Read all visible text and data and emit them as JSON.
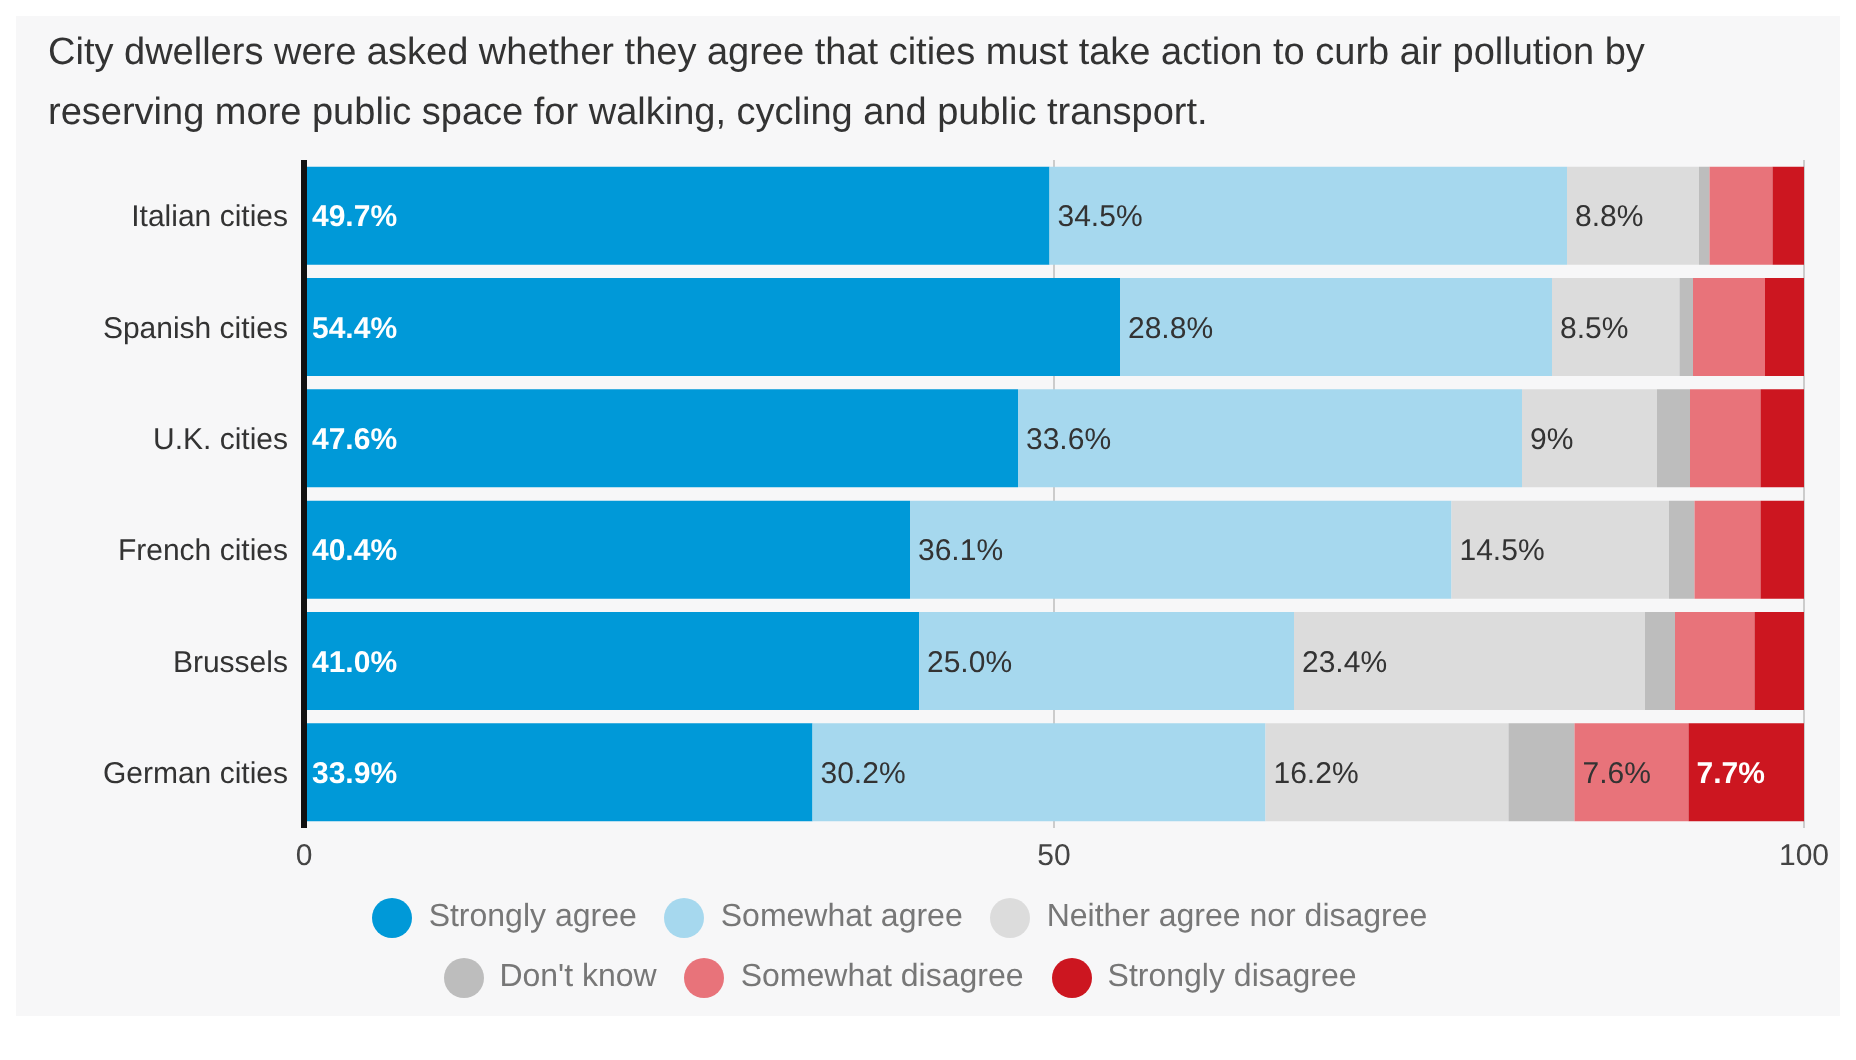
{
  "chart_data": {
    "type": "bar",
    "orientation": "horizontal",
    "stacked": true,
    "title": "City dwellers were asked whether they agree that cities must take action to curb air pollution by reserving more public space for walking, cycling and public transport.",
    "categories": [
      "Italian cities",
      "Spanish cities",
      "U.K. cities",
      "French cities",
      "Brussels",
      "German cities"
    ],
    "series": [
      {
        "name": "Strongly agree",
        "color": "#0099d8",
        "values": [
          49.7,
          54.4,
          47.6,
          40.4,
          41.0,
          33.9
        ],
        "value_labels": [
          "49.7%",
          "54.4%",
          "47.6%",
          "40.4%",
          "41.0%",
          "33.9%"
        ]
      },
      {
        "name": "Somewhat agree",
        "color": "#a6d8ee",
        "values": [
          34.5,
          28.8,
          33.6,
          36.1,
          25.0,
          30.2
        ],
        "value_labels": [
          "34.5%",
          "28.8%",
          "33.6%",
          "36.1%",
          "25.0%",
          "30.2%"
        ]
      },
      {
        "name": "Neither agree nor disagree",
        "color": "#dcdcdc",
        "values": [
          8.8,
          8.5,
          9,
          14.5,
          23.4,
          16.2
        ],
        "value_labels": [
          "8.8%",
          "8.5%",
          "9%",
          "14.5%",
          "23.4%",
          "16.2%"
        ]
      },
      {
        "name": "Don't know",
        "color": "#bdbdbd",
        "values": [
          0.7,
          0.9,
          2.2,
          1.7,
          2.0,
          4.4
        ]
      },
      {
        "name": "Somewhat disagree",
        "color": "#e8737a",
        "values": [
          4.2,
          4.8,
          4.7,
          4.4,
          5.3,
          7.6
        ],
        "value_labels": [
          null,
          null,
          null,
          null,
          null,
          "7.6%"
        ]
      },
      {
        "name": "Strongly disagree",
        "color": "#cc1620",
        "values": [
          2.1,
          2.6,
          2.9,
          2.9,
          3.3,
          7.7
        ],
        "value_labels": [
          null,
          null,
          null,
          null,
          null,
          "7.7%"
        ]
      }
    ],
    "xlim": [
      0,
      100
    ],
    "xticks": [
      0,
      50,
      100
    ],
    "grid": "x",
    "legend": "bottom"
  }
}
